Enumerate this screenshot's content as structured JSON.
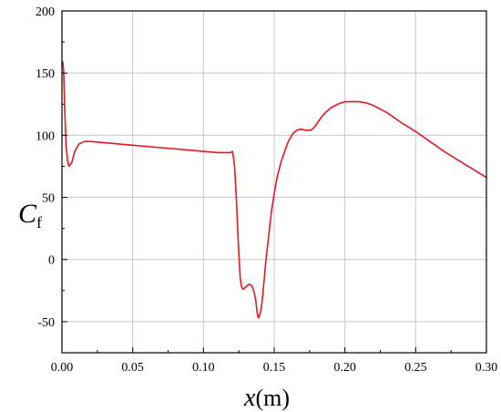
{
  "chart_data": {
    "type": "line",
    "xlabel": {
      "main": "x",
      "unit": "(m)"
    },
    "ylabel": {
      "main": "C",
      "sub": "f"
    },
    "xlim": [
      0.0,
      0.3
    ],
    "ylim": [
      -75,
      200
    ],
    "xticks": [
      "0.00",
      "0.05",
      "0.10",
      "0.15",
      "0.20",
      "0.25",
      "0.30"
    ],
    "yticks": [
      "-50",
      "0",
      "50",
      "100",
      "150",
      "200"
    ],
    "grid": true,
    "line_color": "#e8171d",
    "series": [
      {
        "x": [
          0.0,
          0.0006,
          0.0012,
          0.002,
          0.003,
          0.004,
          0.005,
          0.007,
          0.009,
          0.012,
          0.016,
          0.02,
          0.03,
          0.05,
          0.07,
          0.09,
          0.1,
          0.11,
          0.115,
          0.119,
          0.1205,
          0.121,
          0.122,
          0.123,
          0.124,
          0.125,
          0.1255,
          0.126,
          0.127,
          0.128,
          0.129,
          0.13,
          0.131,
          0.132,
          0.133,
          0.134,
          0.135,
          0.136,
          0.137,
          0.1375,
          0.138,
          0.1385,
          0.139,
          0.14,
          0.141,
          0.142,
          0.143,
          0.144,
          0.146,
          0.148,
          0.15,
          0.152,
          0.155,
          0.158,
          0.16,
          0.163,
          0.166,
          0.169,
          0.172,
          0.174,
          0.176,
          0.178,
          0.18,
          0.183,
          0.186,
          0.19,
          0.195,
          0.2,
          0.205,
          0.21,
          0.215,
          0.22,
          0.23,
          0.24,
          0.25,
          0.26,
          0.27,
          0.28,
          0.29,
          0.3
        ],
        "y": [
          158,
          159,
          152,
          120,
          90,
          80,
          75,
          78,
          87,
          93,
          95,
          95,
          94,
          92,
          90,
          88,
          87,
          86,
          86,
          86,
          87,
          84,
          75,
          55,
          30,
          5,
          -5,
          -15,
          -22,
          -24,
          -23,
          -22,
          -21,
          -20,
          -20,
          -21,
          -23,
          -27,
          -33,
          -38,
          -43,
          -46,
          -47,
          -44,
          -38,
          -28,
          -15,
          -2,
          18,
          38,
          53,
          66,
          79,
          89,
          95,
          101,
          104,
          105,
          104,
          104,
          104,
          106,
          109,
          114,
          118,
          122,
          125,
          127,
          127,
          127,
          126,
          124,
          118,
          110,
          103,
          95,
          87,
          80,
          73,
          66
        ]
      }
    ]
  }
}
